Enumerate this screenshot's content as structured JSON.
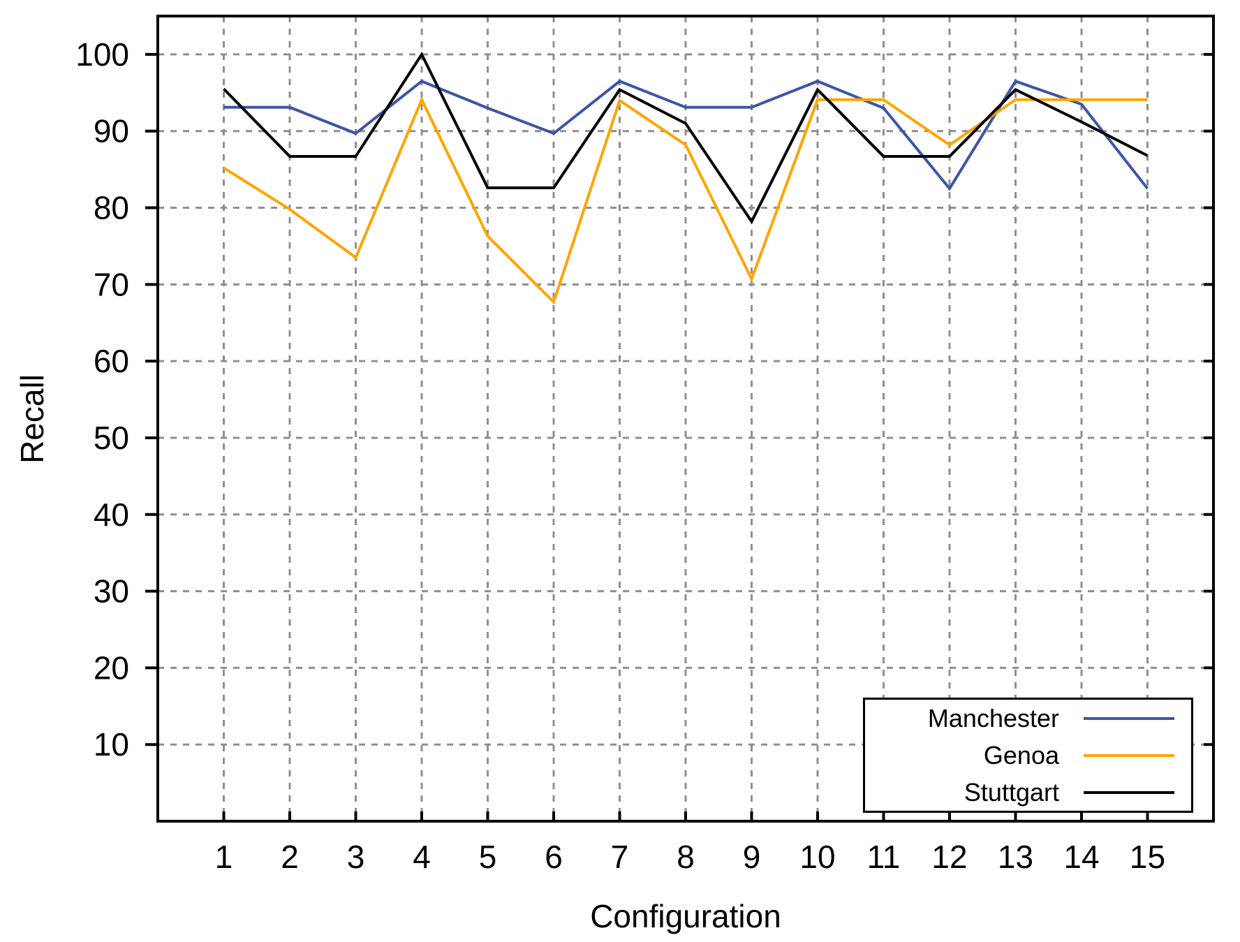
{
  "chart_data": {
    "type": "line",
    "title": "",
    "xlabel": "Configuration",
    "ylabel": "Recall",
    "x": [
      1,
      2,
      3,
      4,
      5,
      6,
      7,
      8,
      9,
      10,
      11,
      12,
      13,
      14,
      15
    ],
    "series": [
      {
        "name": "Manchester",
        "color": "#3c55a5",
        "values": [
          93.1,
          93.1,
          89.7,
          96.5,
          93.0,
          89.7,
          96.5,
          93.1,
          93.1,
          96.5,
          93.0,
          82.5,
          96.5,
          93.5,
          82.5
        ]
      },
      {
        "name": "Genoa",
        "color": "#ffa500",
        "values": [
          85.2,
          79.8,
          73.5,
          94.1,
          76.3,
          67.7,
          94.0,
          88.2,
          70.7,
          94.1,
          94.1,
          88.2,
          94.1,
          94.1,
          94.1
        ]
      },
      {
        "name": "Stuttgart",
        "color": "#000000",
        "values": [
          95.5,
          86.7,
          86.7,
          100.0,
          82.6,
          82.6,
          95.4,
          91.0,
          78.2,
          95.4,
          86.7,
          86.7,
          95.4,
          91.2,
          86.8
        ]
      }
    ],
    "xlim": [
      0,
      16
    ],
    "ylim": [
      0,
      105
    ],
    "x_ticks": [
      1,
      2,
      3,
      4,
      5,
      6,
      7,
      8,
      9,
      10,
      11,
      12,
      13,
      14,
      15
    ],
    "y_ticks": [
      10,
      20,
      30,
      40,
      50,
      60,
      70,
      80,
      90,
      100
    ],
    "grid": true,
    "grid_color": "#8f8f8f",
    "legend_position": "bottom-right",
    "background": "#ffffff"
  }
}
